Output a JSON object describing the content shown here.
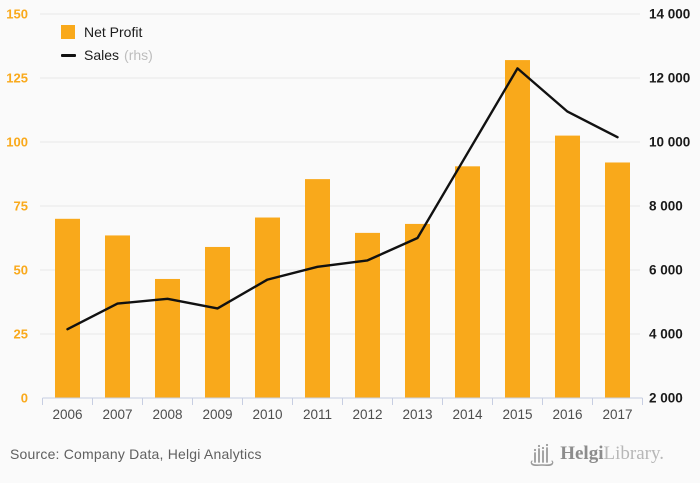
{
  "page": {
    "background": "#fafafa"
  },
  "colors": {
    "accent_orange": "#F9A91B",
    "line_black": "#111111",
    "grid": "#e8e8e8",
    "axis_tick": "#c7cee2",
    "year_label": "#4d4d4d",
    "right_label": "#1a1a1a",
    "source_text": "#606060",
    "logo_gray": "#9b9b9b"
  },
  "legend": {
    "net_profit_label": "Net Profit",
    "sales_label": "Sales",
    "sales_suffix": "(rhs)"
  },
  "footer": {
    "source_text": "Source: Company Data, Helgi Analytics",
    "logo_icon": "helgi-skyline-icon",
    "logo_text_bold": "Helgi",
    "logo_text_light": "Library."
  },
  "chart_data": {
    "type": "bar+line",
    "title": "",
    "categories": [
      "2006",
      "2007",
      "2008",
      "2009",
      "2010",
      "2011",
      "2012",
      "2013",
      "2014",
      "2015",
      "2016",
      "2017"
    ],
    "series": [
      {
        "name": "Net Profit",
        "type": "bar",
        "axis": "left",
        "color": "#F9A91B",
        "values": [
          70,
          63.5,
          46.5,
          59,
          70.5,
          85.5,
          64.5,
          68,
          90.5,
          132,
          102.5,
          92
        ]
      },
      {
        "name": "Sales (rhs)",
        "type": "line",
        "axis": "right",
        "color": "#111111",
        "values": [
          4150,
          4950,
          5100,
          4800,
          5700,
          6100,
          6300,
          7000,
          9650,
          12300,
          10950,
          10150
        ]
      }
    ],
    "left_axis": {
      "min": 0,
      "max": 150,
      "step": 25,
      "ticks": [
        0,
        25,
        50,
        75,
        100,
        125,
        150
      ]
    },
    "right_axis": {
      "min": 2000,
      "max": 14000,
      "step": 2000,
      "tick_labels": [
        "2 000",
        "4 000",
        "6 000",
        "8 000",
        "10 000",
        "12 000",
        "14 000"
      ]
    },
    "grid": true,
    "legend_position": "top-left"
  }
}
